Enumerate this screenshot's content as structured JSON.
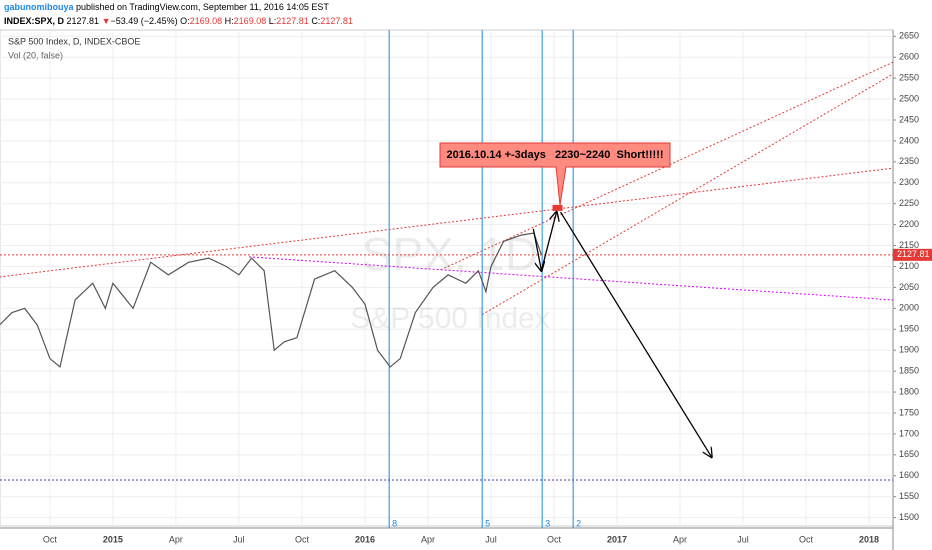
{
  "header": {
    "user": "gabunomibouya",
    "published": "published on TradingView.com, September 11, 2016 14:05 EST",
    "symbol": "INDEX:SPX, D",
    "last": "2127.81",
    "arrow": "▼",
    "change": "−53.49 (−2.45%)",
    "o_label": "O:",
    "o": "2169.08",
    "h_label": "H:",
    "h": "2169.08",
    "l_label": "L:",
    "l": "2127.81",
    "c_label": "C:",
    "c": "2127.81"
  },
  "chart_data": {
    "type": "line",
    "legend_title": "S&P 500 Index, D, INDEX-CBOE",
    "legend_sub": "Vol (20, false)",
    "watermark": "SPX, 1D",
    "watermark_sub": "S&P 500 Index",
    "x": [
      2014.55,
      2014.6,
      2014.65,
      2014.7,
      2014.75,
      2014.79,
      2014.85,
      2014.92,
      2014.97,
      2015.0,
      2015.08,
      2015.15,
      2015.22,
      2015.3,
      2015.38,
      2015.45,
      2015.5,
      2015.55,
      2015.6,
      2015.64,
      2015.68,
      2015.73,
      2015.8,
      2015.88,
      2015.95,
      2016.0,
      2016.05,
      2016.1,
      2016.14,
      2016.2,
      2016.27,
      2016.33,
      2016.4,
      2016.45,
      2016.48,
      2016.5,
      2016.55,
      2016.62,
      2016.67,
      2016.7
    ],
    "series": [
      {
        "name": "S&P 500 Index",
        "color": "#555555",
        "values": [
          1960,
          1990,
          2000,
          1960,
          1880,
          1860,
          2020,
          2060,
          2000,
          2060,
          2000,
          2110,
          2080,
          2110,
          2120,
          2100,
          2080,
          2120,
          2090,
          1900,
          1920,
          1930,
          2070,
          2090,
          2050,
          2010,
          1900,
          1860,
          1880,
          1990,
          2050,
          2080,
          2060,
          2090,
          2040,
          2100,
          2160,
          2175,
          2180,
          2127.81
        ]
      }
    ],
    "trendlines": [
      {
        "color": "#e53935",
        "x": [
          2014.55,
          2018.095
        ],
        "y": [
          2075,
          2335
        ]
      },
      {
        "color": "#e53935",
        "x": [
          2016.465,
          2018.095
        ],
        "y": [
          1985,
          2560
        ]
      },
      {
        "color": "#e53935",
        "x": [
          2016.3,
          2018.095
        ],
        "y": [
          2092,
          2588
        ]
      },
      {
        "color": "#d500f9",
        "x": [
          2015.54,
          2018.095
        ],
        "y": [
          2123,
          2020
        ]
      }
    ],
    "vlines": [
      {
        "x": 2016.096,
        "label": "8"
      },
      {
        "x": 2016.465,
        "label": "5"
      },
      {
        "x": 2016.703,
        "label": "3"
      },
      {
        "x": 2016.826,
        "label": "2"
      }
    ],
    "hlines": [
      {
        "y": 2127.81,
        "color": "#e53935"
      },
      {
        "y": 1590,
        "color": "#3949ab"
      }
    ],
    "arrows": [
      {
        "x": [
          2016.668,
          2016.7
        ],
        "y": [
          2190,
          2090
        ]
      },
      {
        "x": [
          2016.7,
          2016.76
        ],
        "y": [
          2090,
          2230
        ]
      },
      {
        "x": [
          2016.776,
          2017.375
        ],
        "y": [
          2230,
          1645
        ]
      }
    ],
    "callout": {
      "text": "2016.10.14 +-3days   2230~2240  Short!!!!!",
      "x": 2016.764,
      "y": 2240
    },
    "xlim": [
      2014.552,
      2018.095
    ],
    "ylim": [
      1480,
      2665
    ],
    "xticks": [
      {
        "value": 2014.75,
        "label": "Oct"
      },
      {
        "value": 2015,
        "label": "2015"
      },
      {
        "value": 2015.25,
        "label": "Apr"
      },
      {
        "value": 2015.5,
        "label": "Jul"
      },
      {
        "value": 2015.75,
        "label": "Oct"
      },
      {
        "value": 2016,
        "label": "2016"
      },
      {
        "value": 2016.25,
        "label": "Apr"
      },
      {
        "value": 2016.5,
        "label": "Jul"
      },
      {
        "value": 2016.75,
        "label": "Oct"
      },
      {
        "value": 2017,
        "label": "2017"
      },
      {
        "value": 2017.25,
        "label": "Apr"
      },
      {
        "value": 2017.5,
        "label": "Jul"
      },
      {
        "value": 2017.75,
        "label": "Oct"
      },
      {
        "value": 2018,
        "label": "2018"
      }
    ],
    "yticks": [
      1500,
      1550,
      1600,
      1650,
      1700,
      1750,
      1800,
      1850,
      1900,
      1950,
      2000,
      2050,
      2100,
      2150,
      2200,
      2250,
      2300,
      2350,
      2400,
      2450,
      2500,
      2550,
      2600,
      2650
    ],
    "grid": true
  }
}
